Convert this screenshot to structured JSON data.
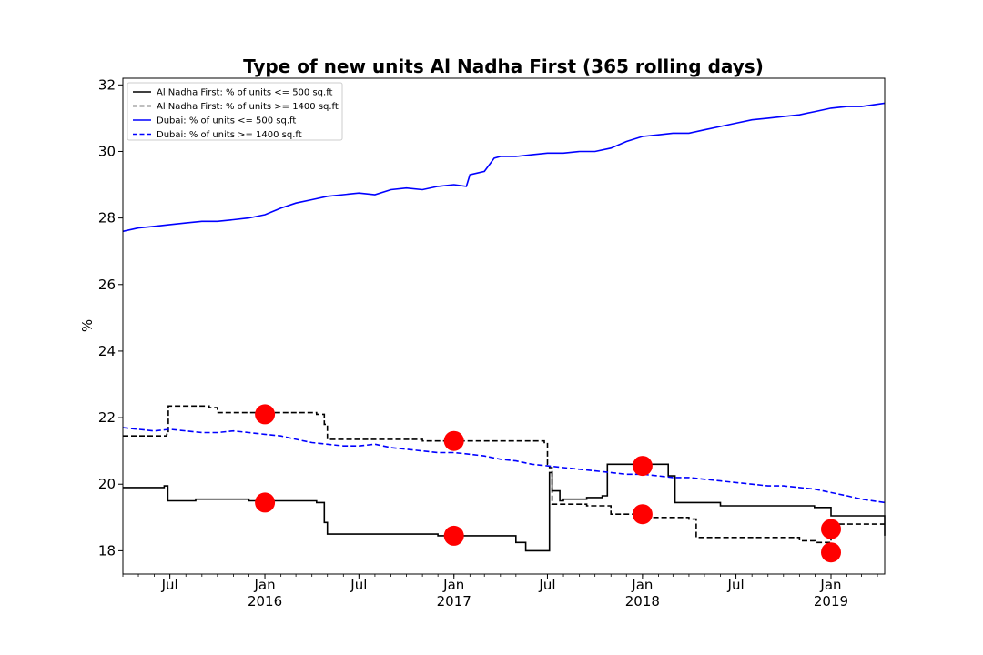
{
  "chart_data": {
    "type": "line",
    "title": "Type of new units Al Nadha First (365 rolling days)",
    "xlabel": "",
    "ylabel": "%",
    "xlim": [
      "2015-04-01",
      "2019-04-15"
    ],
    "ylim": [
      17.3,
      32.2
    ],
    "y_ticks": [
      18,
      20,
      22,
      24,
      26,
      28,
      30,
      32
    ],
    "x_ticks": [
      {
        "date": "2015-07-01",
        "label": "Jul",
        "sublabel": ""
      },
      {
        "date": "2016-01-01",
        "label": "Jan",
        "sublabel": "2016"
      },
      {
        "date": "2016-07-01",
        "label": "Jul",
        "sublabel": ""
      },
      {
        "date": "2017-01-01",
        "label": "Jan",
        "sublabel": "2017"
      },
      {
        "date": "2017-07-01",
        "label": "Jul",
        "sublabel": ""
      },
      {
        "date": "2018-01-01",
        "label": "Jan",
        "sublabel": "2018"
      },
      {
        "date": "2018-07-01",
        "label": "Jul",
        "sublabel": ""
      },
      {
        "date": "2019-01-01",
        "label": "Jan",
        "sublabel": "2019"
      }
    ],
    "legend_position": "top-left",
    "grid": false,
    "series": [
      {
        "name": "Al Nadha First: % of units <= 500 sq.ft",
        "color": "#000000",
        "style": "solid",
        "step": true,
        "x": [
          "2015-04-01",
          "2015-06-20",
          "2015-06-27",
          "2015-07-15",
          "2015-08-20",
          "2015-09-20",
          "2015-12-01",
          "2016-04-10",
          "2016-04-25",
          "2016-05-01",
          "2016-08-15",
          "2016-12-01",
          "2017-04-01",
          "2017-05-01",
          "2017-05-20",
          "2017-07-01",
          "2017-07-05",
          "2017-07-10",
          "2017-07-25",
          "2017-08-01",
          "2017-09-15",
          "2017-10-15",
          "2017-10-25",
          "2018-02-20",
          "2018-03-05",
          "2018-06-01",
          "2018-11-30",
          "2019-01-01",
          "2019-04-15"
        ],
        "y": [
          19.9,
          19.95,
          19.5,
          19.5,
          19.55,
          19.55,
          19.5,
          19.45,
          18.85,
          18.5,
          18.5,
          18.45,
          18.45,
          18.25,
          18.0,
          18.0,
          20.35,
          19.8,
          19.5,
          19.55,
          19.6,
          19.65,
          20.6,
          20.25,
          19.45,
          19.35,
          19.3,
          19.05,
          18.45
        ]
      },
      {
        "name": "Al Nadha First: % of units >= 1400 sq.ft",
        "color": "#000000",
        "style": "dashed",
        "step": true,
        "x": [
          "2015-04-01",
          "2015-06-25",
          "2015-06-28",
          "2015-09-15",
          "2015-10-01",
          "2016-04-10",
          "2016-04-25",
          "2016-05-01",
          "2016-11-01",
          "2017-06-25",
          "2017-07-01",
          "2017-07-05",
          "2017-07-10",
          "2017-08-01",
          "2017-09-15",
          "2017-11-01",
          "2018-01-01",
          "2018-02-10",
          "2018-04-01",
          "2018-04-15",
          "2018-11-01",
          "2018-12-01",
          "2019-01-01",
          "2019-04-15"
        ],
        "y": [
          21.45,
          21.5,
          22.35,
          22.3,
          22.15,
          22.1,
          21.8,
          21.35,
          21.3,
          21.25,
          20.6,
          20.5,
          19.4,
          19.4,
          19.35,
          19.1,
          19.0,
          19.0,
          18.95,
          18.4,
          18.3,
          18.25,
          18.8,
          18.8
        ]
      },
      {
        "name": "Dubai: % of units <= 500 sq.ft",
        "color": "#0000ff",
        "style": "solid",
        "step": false,
        "x": [
          "2015-04-01",
          "2015-05-01",
          "2015-06-01",
          "2015-07-01",
          "2015-08-01",
          "2015-09-01",
          "2015-10-01",
          "2015-11-01",
          "2015-12-01",
          "2016-01-01",
          "2016-02-01",
          "2016-03-01",
          "2016-04-01",
          "2016-05-01",
          "2016-06-01",
          "2016-07-01",
          "2016-08-01",
          "2016-09-01",
          "2016-10-01",
          "2016-11-01",
          "2016-12-01",
          "2017-01-01",
          "2017-01-25",
          "2017-02-01",
          "2017-03-01",
          "2017-03-20",
          "2017-04-01",
          "2017-05-01",
          "2017-06-01",
          "2017-07-01",
          "2017-08-01",
          "2017-09-01",
          "2017-10-01",
          "2017-11-01",
          "2017-12-01",
          "2018-01-01",
          "2018-02-01",
          "2018-03-01",
          "2018-04-01",
          "2018-05-01",
          "2018-06-01",
          "2018-07-01",
          "2018-08-01",
          "2018-09-01",
          "2018-10-01",
          "2018-11-01",
          "2018-12-01",
          "2019-01-01",
          "2019-02-01",
          "2019-03-01",
          "2019-04-15"
        ],
        "y": [
          27.6,
          27.7,
          27.75,
          27.8,
          27.85,
          27.9,
          27.9,
          27.95,
          28.0,
          28.1,
          28.3,
          28.45,
          28.55,
          28.65,
          28.7,
          28.75,
          28.7,
          28.85,
          28.9,
          28.85,
          28.95,
          29.0,
          28.95,
          29.3,
          29.4,
          29.8,
          29.85,
          29.85,
          29.9,
          29.95,
          29.95,
          30.0,
          30.0,
          30.1,
          30.3,
          30.45,
          30.5,
          30.55,
          30.55,
          30.65,
          30.75,
          30.85,
          30.95,
          31.0,
          31.05,
          31.1,
          31.2,
          31.3,
          31.35,
          31.35,
          31.45
        ]
      },
      {
        "name": "Dubai: % of units >= 1400 sq.ft",
        "color": "#0000ff",
        "style": "dashed",
        "step": false,
        "x": [
          "2015-04-01",
          "2015-05-01",
          "2015-06-01",
          "2015-07-01",
          "2015-08-01",
          "2015-09-01",
          "2015-10-01",
          "2015-11-01",
          "2015-12-01",
          "2016-01-01",
          "2016-02-01",
          "2016-03-01",
          "2016-04-01",
          "2016-05-01",
          "2016-06-01",
          "2016-07-01",
          "2016-08-01",
          "2016-09-01",
          "2016-10-01",
          "2016-11-01",
          "2016-12-01",
          "2017-01-01",
          "2017-02-01",
          "2017-03-01",
          "2017-04-01",
          "2017-05-01",
          "2017-06-01",
          "2017-07-01",
          "2017-08-01",
          "2017-09-01",
          "2017-10-01",
          "2017-11-01",
          "2017-12-01",
          "2018-01-01",
          "2018-02-01",
          "2018-03-01",
          "2018-04-01",
          "2018-05-01",
          "2018-06-01",
          "2018-07-01",
          "2018-08-01",
          "2018-09-01",
          "2018-10-01",
          "2018-11-01",
          "2018-12-01",
          "2019-01-01",
          "2019-02-01",
          "2019-03-01",
          "2019-04-15"
        ],
        "y": [
          21.7,
          21.65,
          21.6,
          21.65,
          21.6,
          21.55,
          21.55,
          21.6,
          21.55,
          21.5,
          21.45,
          21.35,
          21.25,
          21.2,
          21.15,
          21.15,
          21.2,
          21.1,
          21.05,
          21.0,
          20.95,
          20.95,
          20.9,
          20.85,
          20.75,
          20.7,
          20.6,
          20.55,
          20.5,
          20.45,
          20.4,
          20.35,
          20.3,
          20.3,
          20.25,
          20.2,
          20.2,
          20.15,
          20.1,
          20.05,
          20.0,
          19.95,
          19.95,
          19.9,
          19.85,
          19.75,
          19.65,
          19.55,
          19.45
        ]
      }
    ],
    "markers": {
      "color": "#ff0000",
      "points": [
        {
          "x": "2016-01-01",
          "y": 22.1
        },
        {
          "x": "2016-01-01",
          "y": 19.45
        },
        {
          "x": "2017-01-01",
          "y": 21.3
        },
        {
          "x": "2017-01-01",
          "y": 18.45
        },
        {
          "x": "2018-01-01",
          "y": 20.55
        },
        {
          "x": "2018-01-01",
          "y": 19.1
        },
        {
          "x": "2019-01-01",
          "y": 18.65
        },
        {
          "x": "2019-01-01",
          "y": 17.95
        }
      ]
    }
  }
}
